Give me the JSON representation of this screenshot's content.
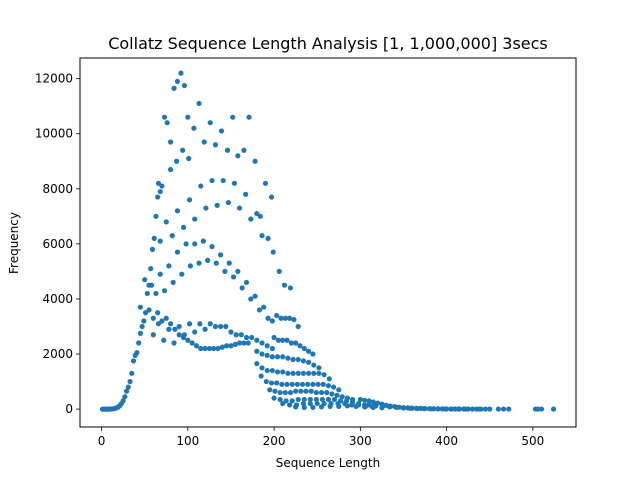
{
  "chart_data": {
    "type": "scatter",
    "title": "Collatz Sequence Length Analysis [1, 1,000,000] 3secs",
    "xlabel": "Sequence Length",
    "ylabel": "Frequency",
    "xlim": [
      -25,
      550
    ],
    "ylim": [
      -650,
      12750
    ],
    "xticks": [
      0,
      100,
      200,
      300,
      400,
      500
    ],
    "yticks": [
      0,
      2000,
      4000,
      6000,
      8000,
      10000,
      12000
    ],
    "xtick_labels": [
      "0",
      "100",
      "200",
      "300",
      "400",
      "500"
    ],
    "ytick_labels": [
      "0",
      "2000",
      "4000",
      "6000",
      "8000",
      "10000",
      "12000"
    ],
    "grid": false,
    "color": "#1f77b4",
    "points": [
      [
        1,
        0
      ],
      [
        3,
        0
      ],
      [
        5,
        0
      ],
      [
        7,
        0
      ],
      [
        9,
        0
      ],
      [
        11,
        5
      ],
      [
        13,
        10
      ],
      [
        15,
        20
      ],
      [
        17,
        40
      ],
      [
        19,
        70
      ],
      [
        21,
        120
      ],
      [
        23,
        200
      ],
      [
        25,
        300
      ],
      [
        27,
        450
      ],
      [
        29,
        650
      ],
      [
        31,
        800
      ],
      [
        33,
        1000
      ],
      [
        35,
        1300
      ],
      [
        37,
        1750
      ],
      [
        39,
        1950
      ],
      [
        41,
        2050
      ],
      [
        43,
        2400
      ],
      [
        45,
        2750
      ],
      [
        47,
        3000
      ],
      [
        49,
        3200
      ],
      [
        51,
        3500
      ],
      [
        53,
        4200
      ],
      [
        55,
        4500
      ],
      [
        57,
        5100
      ],
      [
        59,
        5800
      ],
      [
        61,
        6200
      ],
      [
        63,
        7000
      ],
      [
        65,
        7700
      ],
      [
        66,
        8200
      ],
      [
        68,
        7900
      ],
      [
        70,
        8100
      ],
      [
        73,
        10600
      ],
      [
        76,
        10400
      ],
      [
        80,
        9700
      ],
      [
        84,
        11650
      ],
      [
        88,
        11900
      ],
      [
        92,
        12200
      ],
      [
        96,
        11750
      ],
      [
        100,
        10600
      ],
      [
        45,
        3700
      ],
      [
        50,
        4700
      ],
      [
        55,
        3600
      ],
      [
        60,
        3300
      ],
      [
        65,
        3500
      ],
      [
        70,
        3200
      ],
      [
        75,
        3300
      ],
      [
        80,
        3100
      ],
      [
        85,
        2900
      ],
      [
        90,
        2700
      ],
      [
        95,
        2600
      ],
      [
        100,
        2500
      ],
      [
        105,
        2400
      ],
      [
        110,
        2300
      ],
      [
        115,
        2200
      ],
      [
        120,
        2200
      ],
      [
        125,
        2200
      ],
      [
        130,
        2200
      ],
      [
        135,
        2200
      ],
      [
        140,
        2250
      ],
      [
        145,
        2300
      ],
      [
        150,
        2300
      ],
      [
        155,
        2350
      ],
      [
        160,
        2400
      ],
      [
        165,
        2400
      ],
      [
        170,
        2400
      ],
      [
        58,
        4500
      ],
      [
        63,
        4200
      ],
      [
        68,
        4900
      ],
      [
        73,
        4300
      ],
      [
        78,
        5200
      ],
      [
        83,
        4600
      ],
      [
        88,
        5700
      ],
      [
        93,
        4900
      ],
      [
        98,
        6000
      ],
      [
        103,
        5200
      ],
      [
        108,
        6000
      ],
      [
        113,
        5300
      ],
      [
        118,
        6100
      ],
      [
        123,
        5400
      ],
      [
        128,
        5900
      ],
      [
        133,
        5300
      ],
      [
        138,
        5600
      ],
      [
        143,
        5000
      ],
      [
        148,
        5300
      ],
      [
        153,
        4800
      ],
      [
        158,
        5000
      ],
      [
        163,
        4400
      ],
      [
        168,
        4600
      ],
      [
        173,
        4000
      ],
      [
        178,
        4100
      ],
      [
        183,
        3600
      ],
      [
        188,
        3700
      ],
      [
        193,
        3300
      ],
      [
        198,
        3200
      ],
      [
        203,
        3400
      ],
      [
        208,
        3300
      ],
      [
        213,
        3300
      ],
      [
        218,
        3300
      ],
      [
        223,
        3250
      ],
      [
        228,
        3000
      ],
      [
        68,
        6100
      ],
      [
        75,
        6800
      ],
      [
        82,
        6300
      ],
      [
        88,
        7200
      ],
      [
        95,
        6600
      ],
      [
        102,
        7600
      ],
      [
        108,
        6900
      ],
      [
        115,
        8100
      ],
      [
        121,
        7300
      ],
      [
        128,
        8300
      ],
      [
        134,
        7400
      ],
      [
        141,
        8300
      ],
      [
        147,
        7500
      ],
      [
        154,
        8200
      ],
      [
        160,
        7300
      ],
      [
        167,
        7800
      ],
      [
        173,
        6900
      ],
      [
        180,
        7100
      ],
      [
        186,
        6300
      ],
      [
        193,
        6200
      ],
      [
        199,
        5700
      ],
      [
        206,
        5000
      ],
      [
        212,
        4500
      ],
      [
        219,
        4400
      ],
      [
        80,
        8700
      ],
      [
        87,
        9000
      ],
      [
        94,
        9400
      ],
      [
        101,
        9100
      ],
      [
        107,
        10200
      ],
      [
        113,
        11100
      ],
      [
        119,
        9700
      ],
      [
        126,
        10400
      ],
      [
        132,
        9600
      ],
      [
        139,
        10100
      ],
      [
        146,
        9400
      ],
      [
        152,
        10600
      ],
      [
        158,
        9200
      ],
      [
        165,
        9400
      ],
      [
        171,
        10600
      ],
      [
        178,
        9000
      ],
      [
        184,
        7000
      ],
      [
        190,
        8200
      ],
      [
        197,
        7700
      ],
      [
        60,
        2700
      ],
      [
        66,
        3100
      ],
      [
        72,
        2500
      ],
      [
        78,
        2900
      ],
      [
        84,
        2400
      ],
      [
        90,
        3000
      ],
      [
        96,
        2700
      ],
      [
        102,
        3100
      ],
      [
        108,
        2800
      ],
      [
        114,
        3100
      ],
      [
        120,
        2900
      ],
      [
        126,
        3100
      ],
      [
        132,
        3000
      ],
      [
        138,
        3000
      ],
      [
        144,
        3000
      ],
      [
        150,
        2800
      ],
      [
        156,
        2700
      ],
      [
        162,
        2700
      ],
      [
        168,
        2600
      ],
      [
        174,
        2600
      ],
      [
        180,
        2500
      ],
      [
        186,
        2400
      ],
      [
        192,
        2300
      ],
      [
        198,
        2200
      ],
      [
        200,
        2600
      ],
      [
        205,
        2500
      ],
      [
        210,
        2500
      ],
      [
        215,
        2500
      ],
      [
        220,
        2400
      ],
      [
        225,
        2400
      ],
      [
        230,
        2300
      ],
      [
        235,
        2200
      ],
      [
        240,
        2100
      ],
      [
        245,
        2000
      ],
      [
        180,
        2100
      ],
      [
        186,
        2000
      ],
      [
        192,
        1950
      ],
      [
        198,
        1900
      ],
      [
        204,
        1900
      ],
      [
        210,
        1900
      ],
      [
        216,
        1850
      ],
      [
        222,
        1800
      ],
      [
        228,
        1800
      ],
      [
        234,
        1750
      ],
      [
        240,
        1700
      ],
      [
        246,
        1600
      ],
      [
        252,
        1500
      ],
      [
        180,
        1650
      ],
      [
        186,
        1500
      ],
      [
        192,
        1400
      ],
      [
        198,
        1400
      ],
      [
        204,
        1350
      ],
      [
        210,
        1350
      ],
      [
        216,
        1300
      ],
      [
        222,
        1300
      ],
      [
        228,
        1300
      ],
      [
        234,
        1300
      ],
      [
        240,
        1300
      ],
      [
        246,
        1300
      ],
      [
        252,
        1300
      ],
      [
        258,
        1250
      ],
      [
        264,
        1100
      ],
      [
        185,
        1200
      ],
      [
        191,
        1000
      ],
      [
        197,
        950
      ],
      [
        203,
        950
      ],
      [
        209,
        900
      ],
      [
        215,
        900
      ],
      [
        221,
        900
      ],
      [
        227,
        900
      ],
      [
        233,
        900
      ],
      [
        239,
        900
      ],
      [
        245,
        900
      ],
      [
        251,
        900
      ],
      [
        257,
        900
      ],
      [
        263,
        850
      ],
      [
        269,
        800
      ],
      [
        275,
        700
      ],
      [
        195,
        700
      ],
      [
        201,
        650
      ],
      [
        207,
        600
      ],
      [
        213,
        600
      ],
      [
        219,
        600
      ],
      [
        225,
        650
      ],
      [
        231,
        650
      ],
      [
        237,
        650
      ],
      [
        243,
        650
      ],
      [
        249,
        600
      ],
      [
        255,
        600
      ],
      [
        261,
        600
      ],
      [
        267,
        550
      ],
      [
        273,
        500
      ],
      [
        279,
        450
      ],
      [
        285,
        400
      ],
      [
        291,
        350
      ],
      [
        200,
        400
      ],
      [
        207,
        350
      ],
      [
        214,
        300
      ],
      [
        221,
        300
      ],
      [
        228,
        350
      ],
      [
        235,
        350
      ],
      [
        242,
        350
      ],
      [
        249,
        350
      ],
      [
        256,
        350
      ],
      [
        263,
        350
      ],
      [
        270,
        350
      ],
      [
        277,
        300
      ],
      [
        284,
        300
      ],
      [
        291,
        250
      ],
      [
        298,
        200
      ],
      [
        305,
        150
      ],
      [
        210,
        200
      ],
      [
        218,
        150
      ],
      [
        226,
        150
      ],
      [
        234,
        200
      ],
      [
        242,
        200
      ],
      [
        250,
        200
      ],
      [
        258,
        200
      ],
      [
        266,
        200
      ],
      [
        274,
        200
      ],
      [
        282,
        200
      ],
      [
        290,
        150
      ],
      [
        298,
        150
      ],
      [
        306,
        100
      ],
      [
        314,
        80
      ],
      [
        225,
        80
      ],
      [
        235,
        60
      ],
      [
        245,
        60
      ],
      [
        255,
        80
      ],
      [
        265,
        100
      ],
      [
        275,
        100
      ],
      [
        285,
        120
      ],
      [
        295,
        100
      ],
      [
        305,
        80
      ],
      [
        315,
        60
      ],
      [
        325,
        50
      ],
      [
        300,
        350
      ],
      [
        305,
        320
      ],
      [
        310,
        300
      ],
      [
        315,
        260
      ],
      [
        320,
        220
      ],
      [
        325,
        180
      ],
      [
        330,
        140
      ],
      [
        335,
        110
      ],
      [
        340,
        90
      ],
      [
        345,
        70
      ],
      [
        350,
        55
      ],
      [
        355,
        45
      ],
      [
        360,
        35
      ],
      [
        365,
        30
      ],
      [
        370,
        25
      ],
      [
        375,
        20
      ],
      [
        380,
        15
      ],
      [
        385,
        12
      ],
      [
        390,
        10
      ],
      [
        395,
        8
      ],
      [
        400,
        6
      ],
      [
        405,
        5
      ],
      [
        410,
        4
      ],
      [
        415,
        4
      ],
      [
        420,
        3
      ],
      [
        425,
        3
      ],
      [
        430,
        2
      ],
      [
        435,
        2
      ],
      [
        440,
        2
      ],
      [
        445,
        2
      ],
      [
        450,
        1
      ],
      [
        310,
        150
      ],
      [
        318,
        120
      ],
      [
        326,
        100
      ],
      [
        334,
        80
      ],
      [
        342,
        60
      ],
      [
        350,
        40
      ],
      [
        358,
        30
      ],
      [
        366,
        20
      ],
      [
        374,
        15
      ],
      [
        382,
        10
      ],
      [
        390,
        8
      ],
      [
        398,
        5
      ],
      [
        406,
        4
      ],
      [
        414,
        3
      ],
      [
        422,
        2
      ],
      [
        430,
        2
      ],
      [
        438,
        1
      ],
      [
        460,
        1
      ],
      [
        466,
        1
      ],
      [
        472,
        1
      ],
      [
        503,
        1
      ],
      [
        506,
        1
      ],
      [
        510,
        1
      ],
      [
        524,
        1
      ]
    ]
  }
}
